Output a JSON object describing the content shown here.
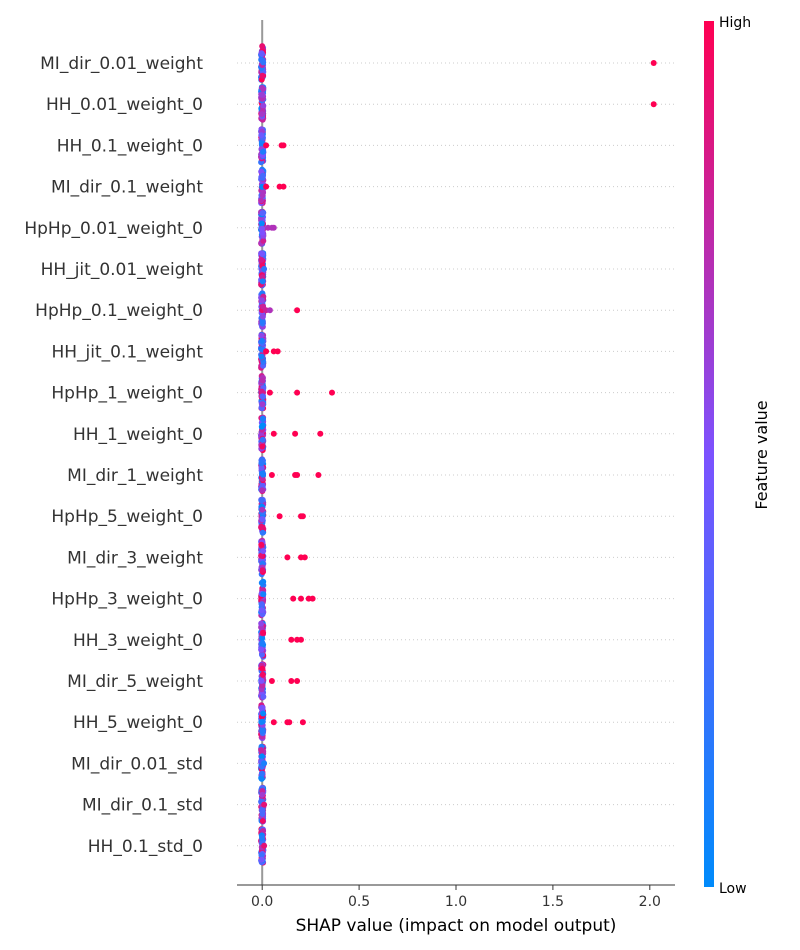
{
  "chart_data": {
    "type": "scatter",
    "subtype": "shap-beeswarm",
    "xlabel": "SHAP value (impact on model output)",
    "xlim": [
      -0.13,
      2.13
    ],
    "xticks": [
      0.0,
      0.5,
      1.0,
      1.5,
      2.0
    ],
    "xtick_labels": [
      "0.0",
      "0.5",
      "1.0",
      "1.5",
      "2.0"
    ],
    "colorbar": {
      "title": "Feature value",
      "high_label": "High",
      "low_label": "Low",
      "low_color": "#008bfb",
      "mid_color": "#7c52ff",
      "high_color": "#ff0052"
    },
    "features": [
      {
        "name": "MI_dir_0.01_weight",
        "outliers": [
          {
            "x": 2.02,
            "c": 1.0
          }
        ]
      },
      {
        "name": "HH_0.01_weight_0",
        "outliers": [
          {
            "x": 2.02,
            "c": 1.0
          }
        ]
      },
      {
        "name": "HH_0.1_weight_0",
        "outliers": [
          {
            "x": 0.02,
            "c": 1.0
          },
          {
            "x": 0.1,
            "c": 1.0
          },
          {
            "x": 0.11,
            "c": 1.0
          }
        ]
      },
      {
        "name": "MI_dir_0.1_weight",
        "outliers": [
          {
            "x": 0.02,
            "c": 1.0
          },
          {
            "x": 0.09,
            "c": 1.0
          },
          {
            "x": 0.11,
            "c": 1.0
          }
        ]
      },
      {
        "name": "HpHp_0.01_weight_0",
        "outliers": [
          {
            "x": 0.03,
            "c": 0.7
          },
          {
            "x": 0.05,
            "c": 0.7
          },
          {
            "x": 0.06,
            "c": 0.7
          }
        ]
      },
      {
        "name": "HH_jit_0.01_weight",
        "outliers": [
          {
            "x": 0.01,
            "c": 0.2
          }
        ]
      },
      {
        "name": "HpHp_0.1_weight_0",
        "outliers": [
          {
            "x": 0.02,
            "c": 0.8
          },
          {
            "x": 0.04,
            "c": 0.7
          },
          {
            "x": 0.18,
            "c": 1.0
          }
        ]
      },
      {
        "name": "HH_jit_0.1_weight",
        "outliers": [
          {
            "x": 0.02,
            "c": 1.0
          },
          {
            "x": 0.06,
            "c": 1.0
          },
          {
            "x": 0.08,
            "c": 1.0
          }
        ]
      },
      {
        "name": "HpHp_1_weight_0",
        "outliers": [
          {
            "x": 0.04,
            "c": 1.0
          },
          {
            "x": 0.18,
            "c": 1.0
          },
          {
            "x": 0.36,
            "c": 1.0
          }
        ]
      },
      {
        "name": "HH_1_weight_0",
        "outliers": [
          {
            "x": 0.06,
            "c": 1.0
          },
          {
            "x": 0.17,
            "c": 1.0
          },
          {
            "x": 0.3,
            "c": 1.0
          }
        ]
      },
      {
        "name": "MI_dir_1_weight",
        "outliers": [
          {
            "x": 0.05,
            "c": 1.0
          },
          {
            "x": 0.17,
            "c": 1.0
          },
          {
            "x": 0.18,
            "c": 1.0
          },
          {
            "x": 0.29,
            "c": 1.0
          }
        ]
      },
      {
        "name": "HpHp_5_weight_0",
        "outliers": [
          {
            "x": 0.09,
            "c": 1.0
          },
          {
            "x": 0.2,
            "c": 1.0
          },
          {
            "x": 0.21,
            "c": 1.0
          }
        ]
      },
      {
        "name": "MI_dir_3_weight",
        "outliers": [
          {
            "x": 0.13,
            "c": 1.0
          },
          {
            "x": 0.2,
            "c": 1.0
          },
          {
            "x": 0.22,
            "c": 1.0
          }
        ]
      },
      {
        "name": "HpHp_3_weight_0",
        "outliers": [
          {
            "x": 0.16,
            "c": 1.0
          },
          {
            "x": 0.2,
            "c": 1.0
          },
          {
            "x": 0.24,
            "c": 1.0
          },
          {
            "x": 0.26,
            "c": 1.0
          }
        ]
      },
      {
        "name": "HH_3_weight_0",
        "outliers": [
          {
            "x": 0.15,
            "c": 1.0
          },
          {
            "x": 0.18,
            "c": 1.0
          },
          {
            "x": 0.2,
            "c": 1.0
          }
        ]
      },
      {
        "name": "MI_dir_5_weight",
        "outliers": [
          {
            "x": 0.05,
            "c": 1.0
          },
          {
            "x": 0.15,
            "c": 1.0
          },
          {
            "x": 0.18,
            "c": 1.0
          }
        ]
      },
      {
        "name": "HH_5_weight_0",
        "outliers": [
          {
            "x": 0.06,
            "c": 1.0
          },
          {
            "x": 0.13,
            "c": 1.0
          },
          {
            "x": 0.14,
            "c": 1.0
          },
          {
            "x": 0.21,
            "c": 1.0
          }
        ]
      },
      {
        "name": "MI_dir_0.01_std",
        "outliers": [
          {
            "x": 0.01,
            "c": 0.1
          }
        ]
      },
      {
        "name": "MI_dir_0.1_std",
        "outliers": [
          {
            "x": 0.01,
            "c": 0.9
          }
        ]
      },
      {
        "name": "HH_0.1_std_0",
        "outliers": [
          {
            "x": 0.01,
            "c": 0.9
          }
        ]
      }
    ]
  }
}
